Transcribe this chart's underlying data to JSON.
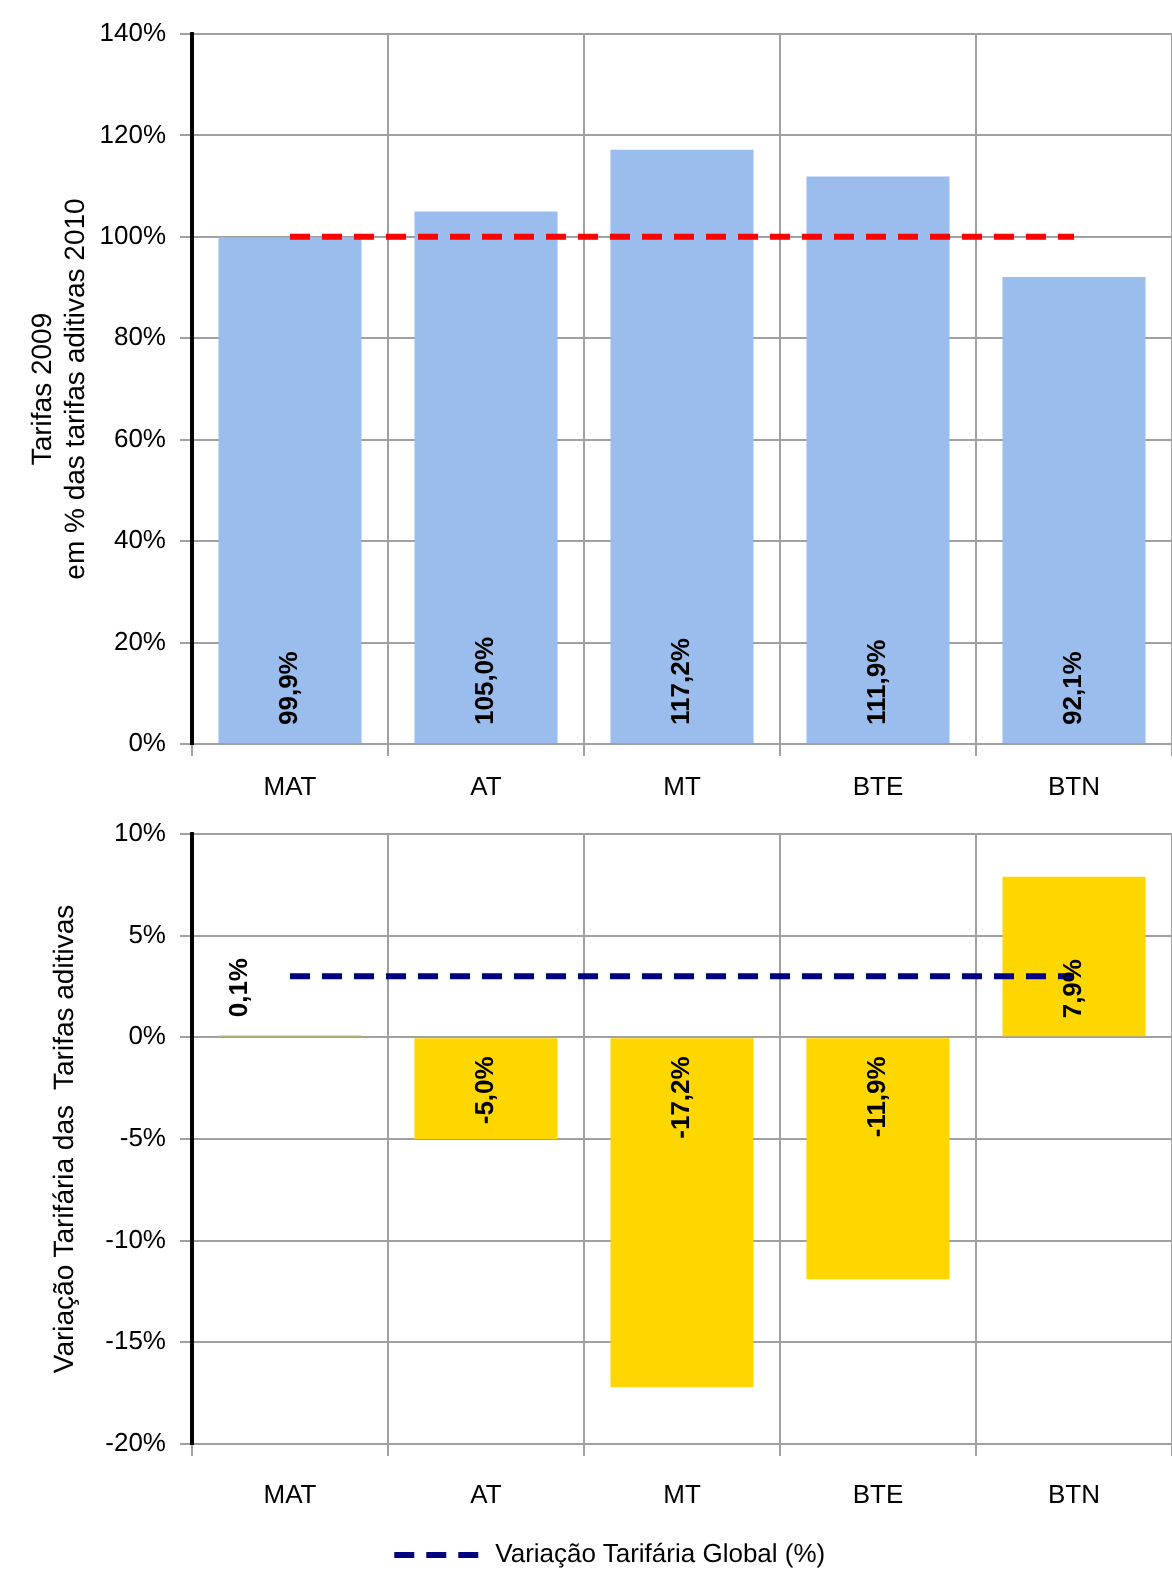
{
  "chart_data": [
    {
      "type": "bar",
      "ylabel": "Tarifas 2009\nem % das tarifas aditivas 2010",
      "categories": [
        "MAT",
        "AT",
        "MT",
        "BTE",
        "BTN"
      ],
      "series": [
        {
          "color": "#9bbdee",
          "values": [
            99.9,
            105.0,
            117.2,
            111.9,
            92.1
          ],
          "value_labels": [
            "99,9%",
            "105,0%",
            "117,2%",
            "111,9%",
            "92,1%"
          ]
        },
        {
          "type": "line",
          "color": "#ff0000",
          "values": [
            100,
            100,
            100,
            100,
            100
          ],
          "line_style": "dashed",
          "marker": "none"
        }
      ],
      "ylim": [
        0,
        140
      ],
      "yticks": [
        {
          "value": 0,
          "label": "0%"
        },
        {
          "value": 20,
          "label": "20%"
        },
        {
          "value": 40,
          "label": "40%"
        },
        {
          "value": 60,
          "label": "60%"
        },
        {
          "value": 80,
          "label": "80%"
        },
        {
          "value": 100,
          "label": "100%"
        },
        {
          "value": 120,
          "label": "120%"
        },
        {
          "value": 140,
          "label": "140%"
        }
      ],
      "grid": true
    },
    {
      "type": "bar",
      "ylabel": "Variação Tarifária das  Tarifas aditivas",
      "categories": [
        "MAT",
        "AT",
        "MT",
        "BTE",
        "BTN"
      ],
      "series": [
        {
          "color": "#ffd700",
          "values": [
            0.1,
            -5.0,
            -17.2,
            -11.9,
            7.9
          ],
          "value_labels": [
            "0,1%",
            "-5,0%",
            "-17,2%",
            "-11,9%",
            "7,9%"
          ]
        },
        {
          "type": "line",
          "name": "Variação Tarifária Global (%)",
          "color": "#000080",
          "values": [
            3,
            3,
            3,
            3,
            3
          ],
          "line_style": "dashed",
          "marker": "none"
        }
      ],
      "ylim": [
        -20,
        10
      ],
      "yticks": [
        {
          "value": -20,
          "label": "-20%"
        },
        {
          "value": -15,
          "label": "-15%"
        },
        {
          "value": -10,
          "label": "-10%"
        },
        {
          "value": -5,
          "label": "-5%"
        },
        {
          "value": 0,
          "label": "0%"
        },
        {
          "value": 5,
          "label": "5%"
        },
        {
          "value": 10,
          "label": "10%"
        }
      ],
      "grid": true,
      "legend": "bottom"
    }
  ]
}
